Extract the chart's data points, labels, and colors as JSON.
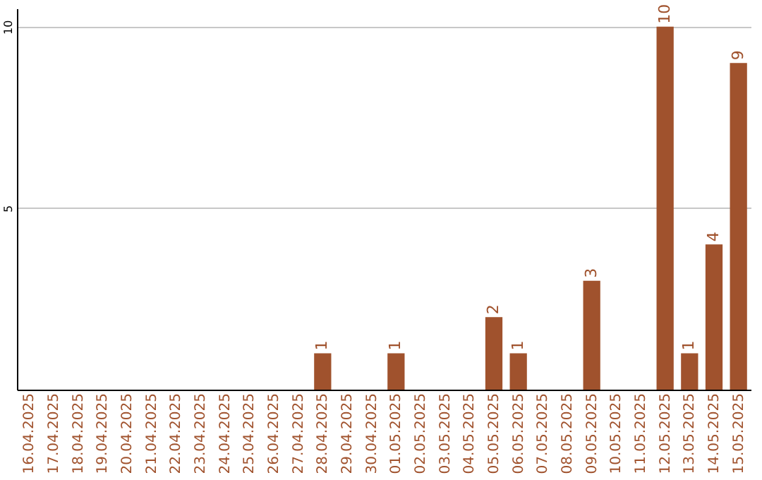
{
  "chart_data": {
    "type": "bar",
    "categories": [
      "16.04.2025",
      "17.04.2025",
      "18.04.2025",
      "19.04.2025",
      "20.04.2025",
      "21.04.2025",
      "22.04.2025",
      "23.04.2025",
      "24.04.2025",
      "25.04.2025",
      "26.04.2025",
      "27.04.2025",
      "28.04.2025",
      "29.04.2025",
      "30.04.2025",
      "01.05.2025",
      "02.05.2025",
      "03.05.2025",
      "04.05.2025",
      "05.05.2025",
      "06.05.2025",
      "07.05.2025",
      "08.05.2025",
      "09.05.2025",
      "10.05.2025",
      "11.05.2025",
      "12.05.2025",
      "13.05.2025",
      "14.05.2025",
      "15.05.2025"
    ],
    "values": [
      0,
      0,
      0,
      0,
      0,
      0,
      0,
      0,
      0,
      0,
      0,
      0,
      1,
      0,
      0,
      1,
      0,
      0,
      0,
      2,
      1,
      0,
      0,
      3,
      0,
      0,
      10,
      1,
      4,
      9
    ],
    "value_labels": [
      null,
      null,
      null,
      null,
      null,
      null,
      null,
      null,
      null,
      null,
      null,
      null,
      "1",
      null,
      null,
      "1",
      null,
      null,
      null,
      "2",
      "1",
      null,
      null,
      "3",
      null,
      null,
      "10",
      "1",
      "4",
      "9"
    ],
    "color": "#a0522d",
    "ylim": [
      0,
      10.5
    ],
    "yticks": [
      5,
      10
    ],
    "grid": "y"
  }
}
